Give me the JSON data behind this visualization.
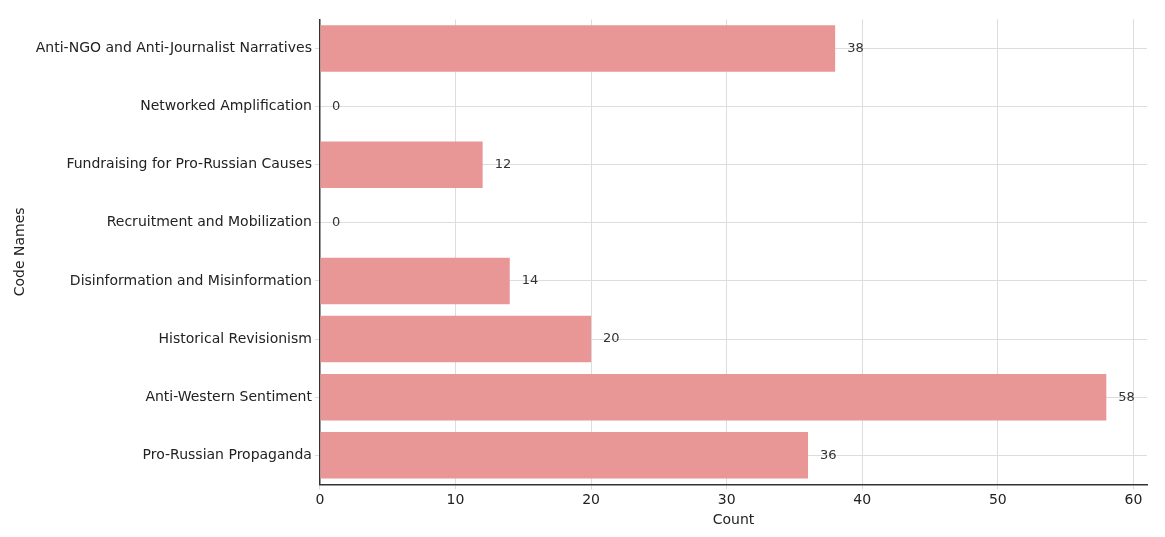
{
  "chart_data": {
    "type": "bar",
    "orientation": "horizontal",
    "categories": [
      "Anti-NGO and Anti-Journalist Narratives",
      "Networked Amplification",
      "Fundraising for Pro-Russian Causes",
      "Recruitment and Mobilization",
      "Disinformation and Misinformation",
      "Historical Revisionism",
      "Anti-Western Sentiment",
      "Pro-Russian Propaganda"
    ],
    "values": [
      38,
      0,
      12,
      0,
      14,
      20,
      58,
      36
    ],
    "color": "#e89696",
    "xlabel": "Count",
    "ylabel": "Code Names",
    "xlim": [
      0,
      61
    ],
    "xticks": [
      0,
      10,
      20,
      30,
      40,
      50,
      60
    ],
    "grid": true,
    "data_labels": true
  }
}
